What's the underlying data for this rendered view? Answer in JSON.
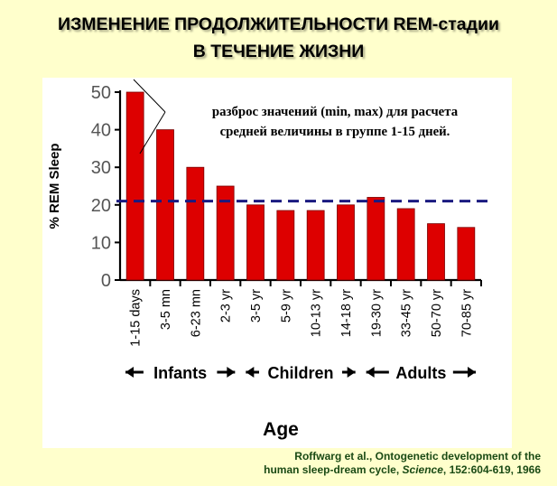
{
  "slide": {
    "title_line1": "ИЗМЕНЕНИЕ ПРОДОЛЖИТЕЛЬНОСТИ REM-стадии",
    "title_line2": "В ТЕЧЕНИЕ ЖИЗНИ",
    "annotation_line1": "разброс значений (min, max) для расчета",
    "annotation_line2": "средней величины в группе 1-15 дней.",
    "citation_line1": "Roffwarg et al., Ontogenetic development of the",
    "citation_line2_pre": "human sleep-dream cycle, ",
    "citation_line2_journal": "Science",
    "citation_line2_post": ", 152:604-619, 1966",
    "background_color": "#ffffcc"
  },
  "chart_data": {
    "type": "bar",
    "categories": [
      "1-15 days",
      "3-5 mn",
      "6-23 mn",
      "2-3 yr",
      "3-5 yr",
      "5-9 yr",
      "10-13 yr",
      "14-18 yr",
      "19-30 yr",
      "33-45 yr",
      "50-70 yr",
      "70-85 yr"
    ],
    "values": [
      50,
      40,
      30,
      25,
      20,
      18.5,
      18.5,
      20,
      22,
      19,
      15,
      14
    ],
    "ylabel": "% REM Sleep",
    "xlabel": "Age",
    "ylim": [
      0,
      50
    ],
    "yticks": [
      0,
      10,
      20,
      30,
      40,
      50
    ],
    "mean_line": 21,
    "age_groups": [
      {
        "label": "Infants",
        "from": 0,
        "to": 3
      },
      {
        "label": "Children",
        "from": 4,
        "to": 7
      },
      {
        "label": "Adults",
        "from": 8,
        "to": 11
      }
    ],
    "bar_color": "#dd0000",
    "mean_line_color": "#1a1a80",
    "grid": false
  }
}
